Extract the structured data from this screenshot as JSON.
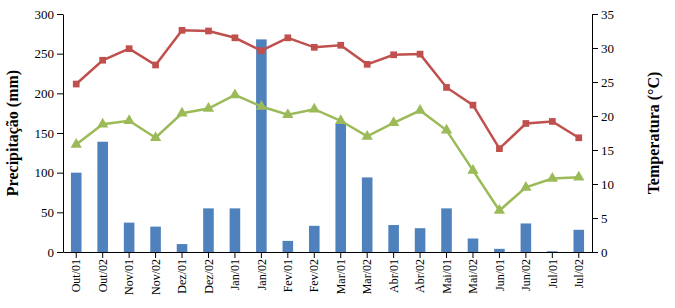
{
  "chart_data": {
    "type": "bar",
    "y_label": "Precipitação (mm)",
    "y2_label": "Temperatura (°C)",
    "categories": [
      "Out/01",
      "Out/02",
      "Nov/01",
      "Nov/02",
      "Dez/01",
      "Dez/02",
      "Jan/01",
      "Jan/02",
      "Fev/01",
      "Fev/02",
      "Mar/01",
      "Mar/02",
      "Abr/01",
      "Abr/02",
      "Mai/01",
      "Mai/02",
      "Jun/01",
      "Jun/02",
      "Jul/01",
      "Jul/02"
    ],
    "series": [
      {
        "type": "bar",
        "color": "#4f81bd",
        "values": [
          100,
          139,
          37,
          32,
          10,
          55,
          55,
          268,
          14,
          33,
          162,
          94,
          34,
          30,
          55,
          17,
          4,
          36,
          1,
          28
        ]
      },
      {
        "type": "line",
        "axis": "y2",
        "color": "#c0504d",
        "marker": "square",
        "values": [
          24.7,
          28.2,
          29.9,
          27.5,
          32.6,
          32.5,
          31.5,
          29.6,
          31.5,
          30.1,
          30.4,
          27.6,
          29.0,
          29.1,
          24.2,
          21.6,
          15.2,
          18.9,
          19.2,
          16.8
        ]
      },
      {
        "type": "line",
        "axis": "y2",
        "color": "#9bbb59",
        "marker": "triangle",
        "values": [
          15.8,
          18.8,
          19.3,
          16.8,
          20.4,
          21.1,
          23.1,
          21.4,
          20.2,
          21.0,
          19.3,
          17.0,
          19.0,
          20.8,
          17.9,
          12.0,
          6.1,
          9.5,
          10.8,
          11.0
        ]
      }
    ],
    "ylim": [
      0,
      300
    ],
    "yticks": [
      0,
      50,
      100,
      150,
      200,
      250,
      300
    ],
    "y2lim": [
      0,
      35
    ],
    "y2ticks": [
      0,
      5,
      10,
      15,
      20,
      25,
      30,
      35
    ],
    "grid": false
  }
}
